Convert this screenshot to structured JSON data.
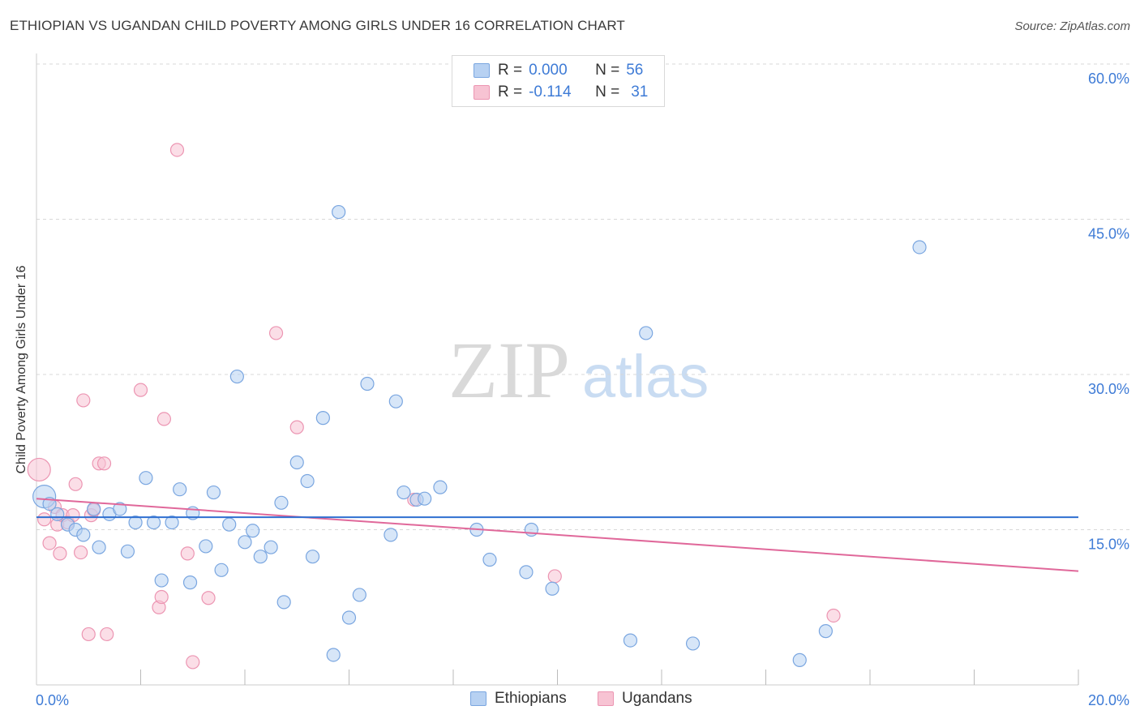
{
  "title": "ETHIOPIAN VS UGANDAN CHILD POVERTY AMONG GIRLS UNDER 16 CORRELATION CHART",
  "source": "Source: ZipAtlas.com",
  "watermark": {
    "zip": "ZIP",
    "atlas": "atlas"
  },
  "legend": {
    "rows": [
      {
        "r_label": "R =",
        "r_value": "0.000",
        "n_label": "N =",
        "n_value": "56"
      },
      {
        "r_label": "R =",
        "r_value": "-0.114",
        "n_label": "N =",
        "n_value": "31"
      }
    ]
  },
  "bottom_legend": {
    "series1": "Ethiopians",
    "series2": "Ugandans"
  },
  "colors": {
    "blue_fill": "#b7d1f2",
    "blue_stroke": "#7aa6e0",
    "blue_line": "#2f6fd0",
    "pink_fill": "#f7c3d3",
    "pink_stroke": "#ec95b2",
    "pink_line": "#e0689a",
    "axis_text": "#3e7bd6",
    "grid": "#d8d8d8"
  },
  "chart_data": {
    "type": "scatter",
    "title": "ETHIOPIAN VS UGANDAN CHILD POVERTY AMONG GIRLS UNDER 16 CORRELATION CHART",
    "xlabel": "",
    "ylabel": "Child Poverty Among Girls Under 16",
    "xlim": [
      0,
      20
    ],
    "ylim": [
      0,
      60
    ],
    "x_tick_labels": [
      "0.0%",
      "20.0%"
    ],
    "y_tick_labels": [
      "15.0%",
      "30.0%",
      "45.0%",
      "60.0%"
    ],
    "y_ticks": [
      15,
      30,
      45,
      60
    ],
    "grid": true,
    "legend_position": "top-center",
    "series": [
      {
        "name": "Ethiopians",
        "r": 0.0,
        "n": 56,
        "trend": {
          "x": [
            0,
            20
          ],
          "y": [
            16.2,
            16.2
          ]
        },
        "points": [
          {
            "x": 0.15,
            "y": 18.2,
            "big": true
          },
          {
            "x": 0.25,
            "y": 17.5
          },
          {
            "x": 0.4,
            "y": 16.5
          },
          {
            "x": 0.6,
            "y": 15.5
          },
          {
            "x": 0.75,
            "y": 15.0
          },
          {
            "x": 0.9,
            "y": 14.5
          },
          {
            "x": 1.1,
            "y": 17.0
          },
          {
            "x": 1.2,
            "y": 13.3
          },
          {
            "x": 1.4,
            "y": 16.5
          },
          {
            "x": 1.6,
            "y": 17.0
          },
          {
            "x": 1.75,
            "y": 12.9
          },
          {
            "x": 1.9,
            "y": 15.7
          },
          {
            "x": 2.1,
            "y": 20.0
          },
          {
            "x": 2.25,
            "y": 15.7
          },
          {
            "x": 2.4,
            "y": 10.1
          },
          {
            "x": 2.6,
            "y": 15.7
          },
          {
            "x": 2.75,
            "y": 18.9
          },
          {
            "x": 2.95,
            "y": 9.9
          },
          {
            "x": 3.0,
            "y": 16.6
          },
          {
            "x": 3.25,
            "y": 13.4
          },
          {
            "x": 3.4,
            "y": 18.6
          },
          {
            "x": 3.55,
            "y": 11.1
          },
          {
            "x": 3.7,
            "y": 15.5
          },
          {
            "x": 3.85,
            "y": 29.8
          },
          {
            "x": 4.0,
            "y": 13.8
          },
          {
            "x": 4.15,
            "y": 14.9
          },
          {
            "x": 4.3,
            "y": 12.4
          },
          {
            "x": 4.5,
            "y": 13.3
          },
          {
            "x": 4.7,
            "y": 17.6
          },
          {
            "x": 4.75,
            "y": 8.0
          },
          {
            "x": 5.0,
            "y": 21.5
          },
          {
            "x": 5.2,
            "y": 19.7
          },
          {
            "x": 5.3,
            "y": 12.4
          },
          {
            "x": 5.5,
            "y": 25.8
          },
          {
            "x": 5.7,
            "y": 2.9
          },
          {
            "x": 5.8,
            "y": 45.7
          },
          {
            "x": 6.0,
            "y": 6.5
          },
          {
            "x": 6.2,
            "y": 8.7
          },
          {
            "x": 6.35,
            "y": 29.1
          },
          {
            "x": 6.8,
            "y": 14.5
          },
          {
            "x": 6.9,
            "y": 27.4
          },
          {
            "x": 7.05,
            "y": 18.6
          },
          {
            "x": 7.3,
            "y": 17.9
          },
          {
            "x": 7.45,
            "y": 18.0
          },
          {
            "x": 7.75,
            "y": 19.1
          },
          {
            "x": 8.45,
            "y": 15.0
          },
          {
            "x": 8.7,
            "y": 12.1
          },
          {
            "x": 9.4,
            "y": 10.9
          },
          {
            "x": 9.5,
            "y": 15.0
          },
          {
            "x": 9.9,
            "y": 9.3
          },
          {
            "x": 11.4,
            "y": 4.3
          },
          {
            "x": 11.7,
            "y": 34.0
          },
          {
            "x": 12.6,
            "y": 4.0
          },
          {
            "x": 14.65,
            "y": 2.4
          },
          {
            "x": 15.15,
            "y": 5.2
          },
          {
            "x": 16.95,
            "y": 42.3
          }
        ]
      },
      {
        "name": "Ugandans",
        "r": -0.114,
        "n": 31,
        "trend": {
          "x": [
            0,
            20
          ],
          "y": [
            18.0,
            11.0
          ]
        },
        "points": [
          {
            "x": 0.05,
            "y": 20.8,
            "big": true
          },
          {
            "x": 0.15,
            "y": 16.0
          },
          {
            "x": 0.25,
            "y": 13.7
          },
          {
            "x": 0.35,
            "y": 17.2
          },
          {
            "x": 0.4,
            "y": 15.5
          },
          {
            "x": 0.45,
            "y": 12.7
          },
          {
            "x": 0.5,
            "y": 16.4
          },
          {
            "x": 0.6,
            "y": 15.7
          },
          {
            "x": 0.7,
            "y": 16.4
          },
          {
            "x": 0.75,
            "y": 19.4
          },
          {
            "x": 0.85,
            "y": 12.8
          },
          {
            "x": 0.9,
            "y": 27.5
          },
          {
            "x": 1.0,
            "y": 4.9
          },
          {
            "x": 1.05,
            "y": 16.4
          },
          {
            "x": 1.1,
            "y": 16.9
          },
          {
            "x": 1.2,
            "y": 21.4
          },
          {
            "x": 1.3,
            "y": 21.4
          },
          {
            "x": 1.35,
            "y": 4.9
          },
          {
            "x": 2.0,
            "y": 28.5
          },
          {
            "x": 2.35,
            "y": 7.5
          },
          {
            "x": 2.4,
            "y": 8.5
          },
          {
            "x": 2.45,
            "y": 25.7
          },
          {
            "x": 2.7,
            "y": 51.7
          },
          {
            "x": 2.9,
            "y": 12.7
          },
          {
            "x": 3.0,
            "y": 2.2
          },
          {
            "x": 3.3,
            "y": 8.4
          },
          {
            "x": 4.6,
            "y": 34.0
          },
          {
            "x": 5.0,
            "y": 24.9
          },
          {
            "x": 7.25,
            "y": 17.9
          },
          {
            "x": 9.95,
            "y": 10.5
          },
          {
            "x": 15.3,
            "y": 6.7
          }
        ]
      }
    ]
  }
}
